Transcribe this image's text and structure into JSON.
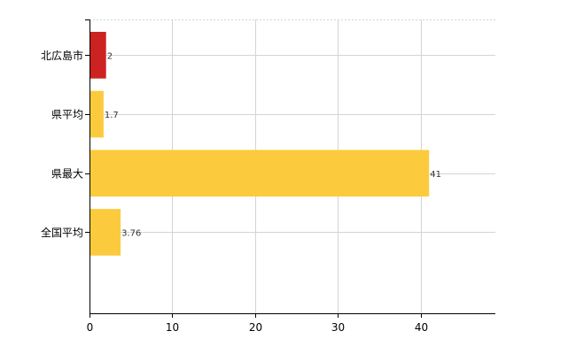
{
  "chart_data": {
    "type": "bar",
    "orientation": "horizontal",
    "title": "",
    "xlabel": "",
    "ylabel": "",
    "categories": [
      "北広島市",
      "県平均",
      "県最大",
      "全国平均"
    ],
    "values": [
      2,
      1.7,
      41,
      3.76
    ],
    "data_labels": [
      "2",
      "1.7",
      "41",
      "3.76"
    ],
    "bar_colors": [
      "#cc2222",
      "#fccb3d",
      "#fccb3d",
      "#fccb3d"
    ],
    "xlim": [
      0,
      49
    ],
    "x_ticks": [
      0,
      10,
      20,
      30,
      40
    ],
    "x_tick_labels": [
      "0",
      "10",
      "20",
      "30",
      "40"
    ],
    "grid": true,
    "legend": "none"
  }
}
